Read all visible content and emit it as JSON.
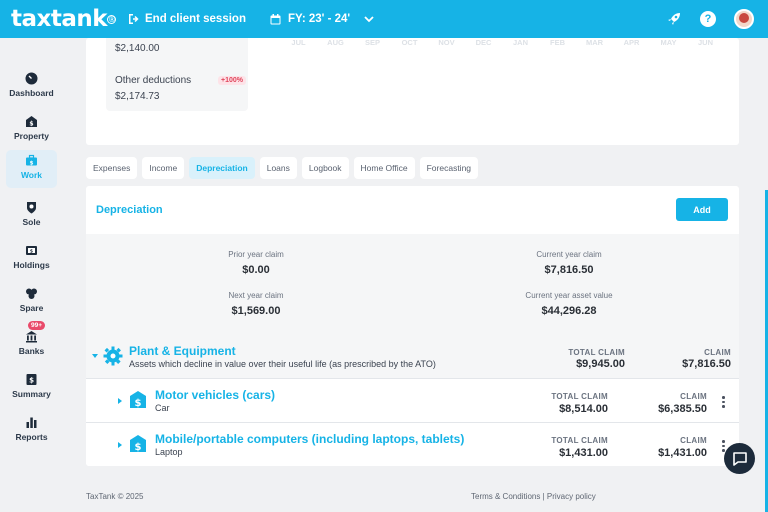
{
  "topbar": {
    "logo": "taxtank",
    "end_session": "End client session",
    "fy": "FY: 23' - 24'"
  },
  "sidebar": {
    "items": [
      {
        "label": "Dashboard"
      },
      {
        "label": "Property"
      },
      {
        "label": "Work"
      },
      {
        "label": "Sole"
      },
      {
        "label": "Holdings"
      },
      {
        "label": "Spare"
      },
      {
        "label": "Banks",
        "badge": "99+"
      },
      {
        "label": "Summary"
      },
      {
        "label": "Reports"
      }
    ]
  },
  "overview": {
    "amount_top": "$2,140.00",
    "other_deductions_label": "Other deductions",
    "other_deductions_badge": "+100%",
    "other_deductions_value": "$2,174.73",
    "months": [
      "JUL",
      "AUG",
      "SEP",
      "OCT",
      "NOV",
      "DEC",
      "JAN",
      "FEB",
      "MAR",
      "APR",
      "MAY",
      "JUN"
    ]
  },
  "tabs": [
    "Expenses",
    "Income",
    "Depreciation",
    "Loans",
    "Logbook",
    "Home Office",
    "Forecasting"
  ],
  "depreciation": {
    "title": "Depreciation",
    "add_label": "Add",
    "prior_year_label": "Prior year claim",
    "prior_year_value": "$0.00",
    "current_year_label": "Current year claim",
    "current_year_value": "$7,816.50",
    "next_year_label": "Next year claim",
    "next_year_value": "$1,569.00",
    "asset_value_label": "Current year asset value",
    "asset_value_value": "$44,296.28",
    "category": {
      "title": "Plant & Equipment",
      "subtitle": "Assets which decline in value over their useful life (as prescribed by the ATO)",
      "total_claim_label": "TOTAL CLAIM",
      "total_claim_value": "$9,945.00",
      "claim_label": "CLAIM",
      "claim_value": "$7,816.50"
    },
    "items": [
      {
        "title": "Motor vehicles (cars)",
        "subtitle": "Car",
        "total_claim_label": "TOTAL CLAIM",
        "total_claim_value": "$8,514.00",
        "claim_label": "CLAIM",
        "claim_value": "$6,385.50"
      },
      {
        "title": "Mobile/portable computers (including laptops, tablets)",
        "subtitle": "Laptop",
        "total_claim_label": "TOTAL CLAIM",
        "total_claim_value": "$1,431.00",
        "claim_label": "CLAIM",
        "claim_value": "$1,431.00"
      }
    ]
  },
  "footer": {
    "copyright": "TaxTank © 2025",
    "terms": "Terms & Conditions",
    "separator": " | ",
    "privacy": "Privacy policy"
  }
}
